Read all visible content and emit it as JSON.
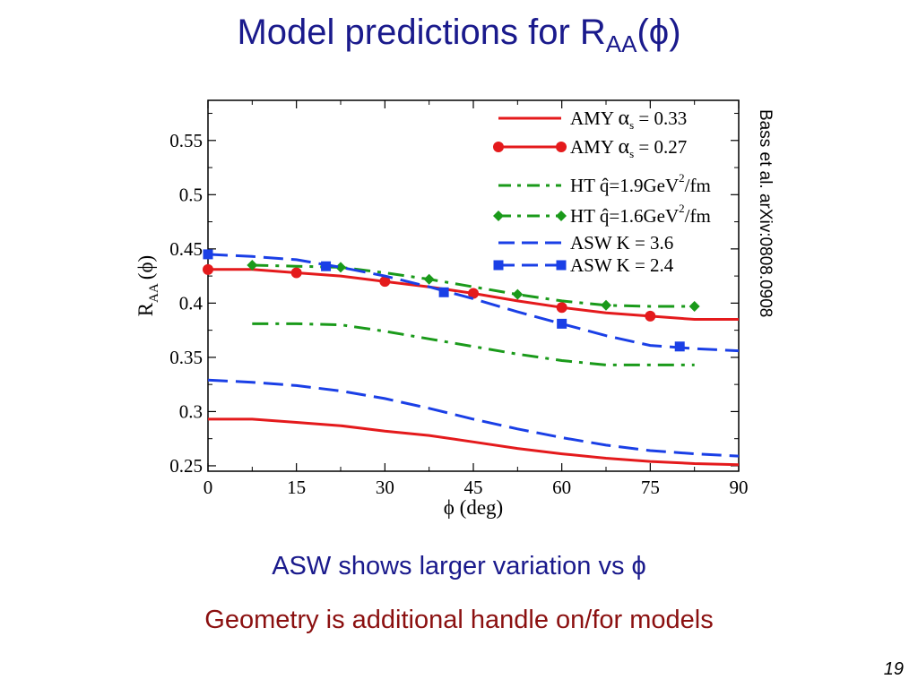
{
  "slide": {
    "title_main": "Model predictions for R",
    "title_sub": "AA",
    "title_tail": "(ϕ)",
    "caption_1": "ASW shows larger variation vs ϕ",
    "caption_2": "Geometry is additional handle on/for models",
    "citation": "Bass et al. arXiv:0808.0908",
    "page_number": "19"
  },
  "chart_data": {
    "type": "line",
    "xlabel": "ϕ (deg)",
    "ylabel_main": "R",
    "ylabel_sub": "AA",
    "ylabel_tail": "(ϕ)",
    "xlim": [
      0,
      90
    ],
    "ylim": [
      0.245,
      0.587
    ],
    "xticks": [
      "0",
      "15",
      "30",
      "45",
      "60",
      "75",
      "90"
    ],
    "yticks": [
      "0.25",
      "0.3",
      "0.35",
      "0.4",
      "0.45",
      "0.5",
      "0.55"
    ],
    "legend_position": "top-right",
    "series": [
      {
        "name": "AMY αs = 0.33",
        "legend": {
          "pre": "AMY ",
          "greek": "α",
          "sub": "s",
          "post": " = 0.33"
        },
        "color": "#e41a1c",
        "dash": "solid",
        "marker": "none",
        "x": [
          0,
          7.5,
          15,
          22.5,
          30,
          37.5,
          45,
          52.5,
          60,
          67.5,
          75,
          82.5,
          90
        ],
        "y": [
          0.293,
          0.293,
          0.29,
          0.287,
          0.282,
          0.278,
          0.272,
          0.266,
          0.261,
          0.257,
          0.254,
          0.252,
          0.251
        ]
      },
      {
        "name": "AMY αs = 0.27",
        "legend": {
          "pre": "AMY ",
          "greek": "α",
          "sub": "s",
          "post": " = 0.27"
        },
        "color": "#e41a1c",
        "dash": "solid",
        "marker": "circle",
        "x": [
          0,
          7.5,
          15,
          22.5,
          30,
          37.5,
          45,
          52.5,
          60,
          67.5,
          75,
          82.5,
          90
        ],
        "y": [
          0.431,
          0.431,
          0.428,
          0.425,
          0.42,
          0.415,
          0.409,
          0.402,
          0.396,
          0.391,
          0.388,
          0.385,
          0.385
        ],
        "marker_x": [
          0,
          15,
          30,
          45,
          60,
          75
        ],
        "marker_y": [
          0.431,
          0.428,
          0.42,
          0.409,
          0.396,
          0.388
        ]
      },
      {
        "name": "HT q̂=1.9GeV2/fm",
        "legend": {
          "pre": "HT ",
          "q": "q̂",
          "post": "=1.9GeV",
          "sup": "2",
          "tail": "/fm"
        },
        "color": "#1a9a1a",
        "dash": "dashdot",
        "marker": "none",
        "x": [
          7.5,
          15,
          22.5,
          30,
          37.5,
          45,
          52.5,
          60,
          67.5,
          75,
          82.5
        ],
        "y": [
          0.381,
          0.381,
          0.38,
          0.374,
          0.367,
          0.36,
          0.353,
          0.347,
          0.343,
          0.343,
          0.343
        ]
      },
      {
        "name": "HT q̂=1.6GeV2/fm",
        "legend": {
          "pre": "HT ",
          "q": "q̂",
          "post": "=1.6GeV",
          "sup": "2",
          "tail": "/fm"
        },
        "color": "#1a9a1a",
        "dash": "dashdot",
        "marker": "diamond",
        "x": [
          7.5,
          15,
          22.5,
          30,
          37.5,
          45,
          52.5,
          60,
          67.5,
          75,
          82.5
        ],
        "y": [
          0.435,
          0.434,
          0.433,
          0.428,
          0.422,
          0.415,
          0.408,
          0.402,
          0.398,
          0.397,
          0.397
        ],
        "marker_x": [
          7.5,
          22.5,
          37.5,
          52.5,
          67.5,
          82.5
        ],
        "marker_y": [
          0.435,
          0.433,
          0.422,
          0.408,
          0.398,
          0.397
        ]
      },
      {
        "name": "ASW K = 3.6",
        "legend": {
          "pre": "ASW K = 3.6"
        },
        "color": "#1a3fe6",
        "dash": "dash",
        "marker": "none",
        "x": [
          0,
          7.5,
          15,
          22.5,
          30,
          37.5,
          45,
          52.5,
          60,
          67.5,
          75,
          82.5,
          90
        ],
        "y": [
          0.329,
          0.327,
          0.324,
          0.319,
          0.312,
          0.303,
          0.293,
          0.284,
          0.276,
          0.269,
          0.264,
          0.261,
          0.259
        ]
      },
      {
        "name": "ASW K = 2.4",
        "legend": {
          "pre": "ASW K = 2.4"
        },
        "color": "#1a3fe6",
        "dash": "dash",
        "marker": "square",
        "x": [
          0,
          7.5,
          15,
          22.5,
          30,
          37.5,
          45,
          52.5,
          60,
          67.5,
          75,
          82.5,
          90
        ],
        "y": [
          0.445,
          0.443,
          0.44,
          0.433,
          0.425,
          0.415,
          0.404,
          0.392,
          0.381,
          0.37,
          0.361,
          0.358,
          0.356
        ],
        "marker_x": [
          0,
          20,
          40,
          60,
          80
        ],
        "marker_y": [
          0.445,
          0.434,
          0.41,
          0.381,
          0.36
        ]
      }
    ]
  }
}
